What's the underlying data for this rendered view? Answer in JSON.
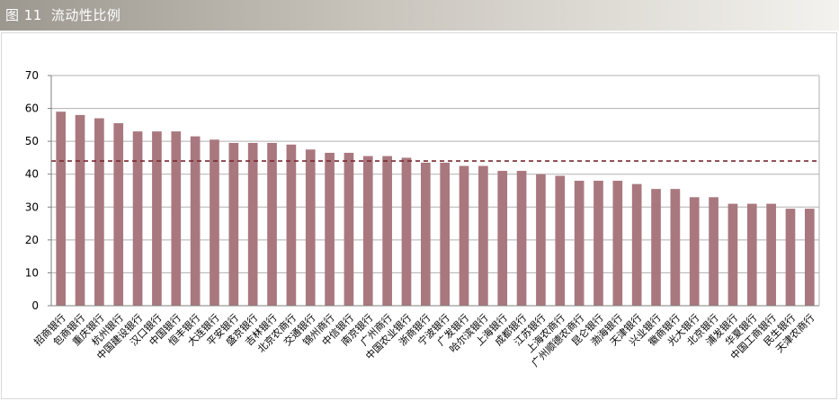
{
  "header": {
    "figure_label": "图 11",
    "title": "流动性比例"
  },
  "colors": {
    "bar": "#a9787e",
    "average_line": "#7a2a32",
    "grid": "#b0b0b0",
    "axis": "#7f7f7f"
  },
  "chart_data": {
    "type": "bar",
    "title": "流动性比例",
    "xlabel": "",
    "ylabel": "",
    "ylim": [
      0,
      70
    ],
    "yticks": [
      0,
      10,
      20,
      30,
      40,
      50,
      60,
      70
    ],
    "grid": true,
    "legend": "none",
    "reference_line": {
      "value": 44,
      "style": "dashed"
    },
    "categories": [
      "招商银行",
      "包商银行",
      "重庆银行",
      "杭州银行",
      "中国建设银行",
      "汉口银行",
      "中国银行",
      "恒丰银行",
      "大连银行",
      "平安银行",
      "盛京银行",
      "吉林银行",
      "北京农商行",
      "交通银行",
      "锦州商行",
      "中信银行",
      "南京银行",
      "广州商行",
      "中国农业银行",
      "浙商银行",
      "宁波银行",
      "广发银行",
      "哈尔滨银行",
      "上海银行",
      "成都银行",
      "江苏银行",
      "上海农商行",
      "广州顺德农商行",
      "昆仑银行",
      "渤海银行",
      "天津银行",
      "兴业银行",
      "徽商银行",
      "光大银行",
      "北京银行",
      "浦发银行",
      "华夏银行",
      "中国工商银行",
      "民生银行",
      "天津农商行"
    ],
    "values": [
      59,
      58,
      57,
      55.5,
      53,
      53,
      53,
      51.5,
      50.5,
      49.5,
      49.5,
      49.5,
      49,
      47.5,
      46.5,
      46.5,
      45.5,
      45.5,
      45,
      43.5,
      43.5,
      42.5,
      42.5,
      41,
      41,
      40,
      39.5,
      38,
      38,
      38,
      37,
      35.5,
      35.5,
      33,
      33,
      31,
      31,
      31,
      29.5,
      29.5
    ]
  }
}
